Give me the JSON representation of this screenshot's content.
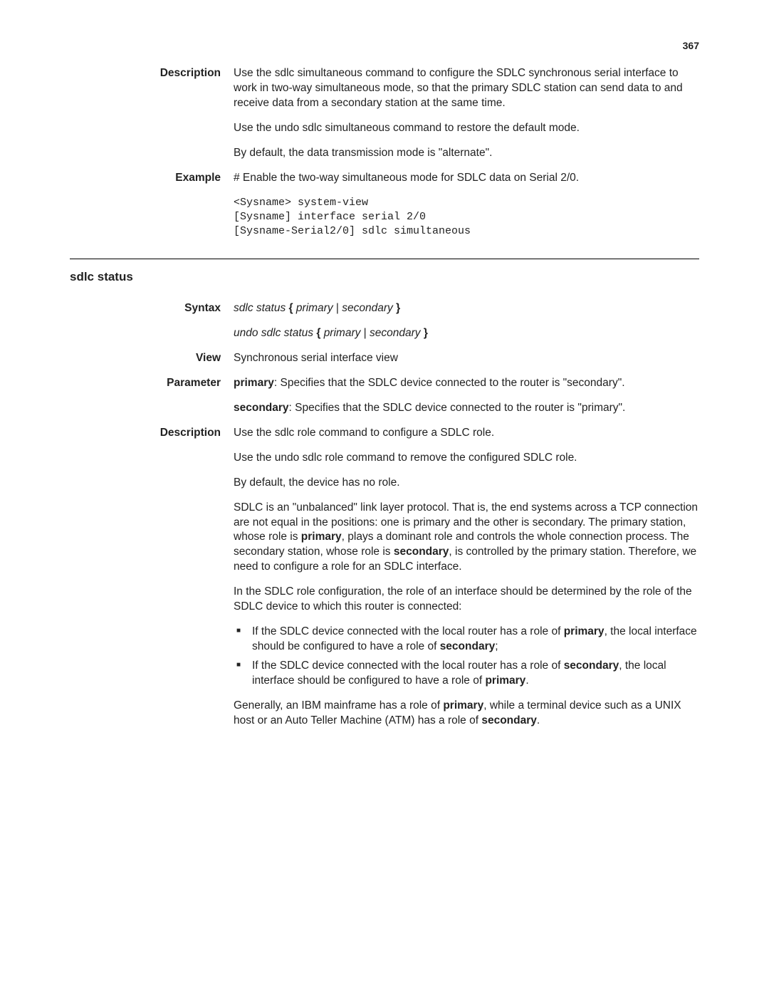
{
  "page_number": "367",
  "sec1": {
    "description_label": "Description",
    "desc_p1_a": "Use the ",
    "desc_p1_cmd": "sdlc simultaneous",
    "desc_p1_b": " command to configure the SDLC synchronous serial interface to work in two-way simultaneous mode, so that the primary SDLC station can send data to and receive data from a secondary station at the same time.",
    "desc_p2_a": "Use the ",
    "desc_p2_cmd": "undo sdlc simultaneous",
    "desc_p2_b": " command to restore the default mode.",
    "desc_p3": "By default, the data transmission mode is \"alternate\".",
    "example_label": "Example",
    "example_intro": "# Enable the two-way simultaneous mode for SDLC data on Serial 2/0.",
    "example_code": "<Sysname> system-view\n[Sysname] interface serial 2/0\n[Sysname-Serial2/0] sdlc simultaneous"
  },
  "sec2": {
    "heading": "sdlc status",
    "syntax_label": "Syntax",
    "syntax_line1": {
      "cmd": "sdlc status",
      "lb": "{",
      "opt1": "primary",
      "pipe": "|",
      "opt2": "secondary",
      "rb": "}"
    },
    "syntax_line2": {
      "cmd": "undo sdlc status",
      "lb": "{",
      "opt1": "primary",
      "pipe": "|",
      "opt2": "secondary",
      "rb": "}"
    },
    "view_label": "View",
    "view_text": "Synchronous serial interface view",
    "parameter_label": "Parameter",
    "param1_key": "primary",
    "param1_rest": ": Specifies that the SDLC device connected to the router is \"secondary\".",
    "param2_key": "secondary",
    "param2_rest": ": Specifies that the SDLC device connected to the router is \"primary\".",
    "description_label": "Description",
    "d_p1_a": "Use the ",
    "d_p1_cmd": "sdlc role",
    "d_p1_b": " command to configure a SDLC role.",
    "d_p2_a": "Use the ",
    "d_p2_cmd": "undo sdlc role",
    "d_p2_b": " command to remove the configured SDLC role.",
    "d_p3": "By default, the device has no role.",
    "d_p4_a": "SDLC is an \"unbalanced\" link layer protocol. That is, the end systems across a TCP connection are not equal in the positions: one is primary and the other is secondary. The primary station, whose role is ",
    "d_p4_b1": "primary",
    "d_p4_c": ", plays a dominant role and controls the whole connection process. The secondary station, whose role is ",
    "d_p4_b2": "secondary",
    "d_p4_d": ", is controlled by the primary station. Therefore, we need to configure a role for an SDLC interface.",
    "d_p5": "In the SDLC role configuration, the role of an interface should be determined by the role of the SDLC device to which this router is connected:",
    "li1_a": "If the SDLC device connected with the local router has a role of ",
    "li1_b": "primary",
    "li1_c": ", the local interface should be configured to have a role of ",
    "li1_d": "secondary",
    "li1_e": ";",
    "li2_a": "If the SDLC device connected with the local router has a role of ",
    "li2_b": "secondary",
    "li2_c": ", the local interface should be configured to have a role of ",
    "li2_d": "primary",
    "li2_e": ".",
    "d_p6_a": "Generally, an IBM mainframe has a role of ",
    "d_p6_b1": "primary",
    "d_p6_c": ", while a terminal device such as a UNIX host or an Auto Teller Machine (ATM) has a role of ",
    "d_p6_b2": "secondary",
    "d_p6_d": "."
  }
}
